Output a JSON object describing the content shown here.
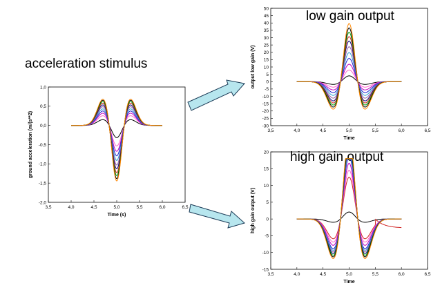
{
  "labels": {
    "accel_title": "acceleration stimulus",
    "low_title": "low gain output",
    "high_title": "high gain output"
  },
  "colors": [
    "#000000",
    "#1f1fd0",
    "#d02020",
    "#00a000",
    "#c000c0",
    "#ff66cc",
    "#2a9fd6",
    "#9a60a0",
    "#606000",
    "#0a0a80",
    "#800000",
    "#ff8800"
  ],
  "chart_data": [
    {
      "type": "line",
      "ylabel": "ground acceleration (m/(s**2)",
      "xlabel": "Time (s)",
      "xlim": [
        3.5,
        6.5
      ],
      "ylim": [
        -2.0,
        1.0
      ],
      "xticks": [
        "3,5",
        "4,0",
        "4,5",
        "5,0",
        "5,5",
        "6,0",
        "6,5"
      ],
      "yticks": [
        "1,0",
        "0,5",
        "0,0",
        "-0,5",
        "-1,0",
        "-1,5",
        "-2,0"
      ],
      "shape": "pulse",
      "series_amplitudes": [
        0.16,
        0.27,
        0.34,
        0.4,
        0.46,
        0.52,
        0.57,
        0.62,
        0.66,
        0.7,
        0.73
      ],
      "series_colors": [
        "#000000",
        "#ff66cc",
        "#c000c0",
        "#1f1fd0",
        "#2a9fd6",
        "#9a60a0",
        "#0a0a80",
        "#d02020",
        "#00a000",
        "#000000",
        "#ff8800"
      ]
    },
    {
      "type": "line",
      "ylabel": "output low gain (V)",
      "xlabel": "Time",
      "xlim": [
        3.5,
        6.5
      ],
      "ylim": [
        -30,
        50
      ],
      "xticks": [
        "3,5",
        "4,0",
        "4,5",
        "5,0",
        "5,5",
        "6,0",
        "6,5"
      ],
      "yticks": [
        "50",
        "45",
        "40",
        "35",
        "30",
        "25",
        "20",
        "15",
        "10",
        "5",
        "0",
        "-5",
        "-10",
        "-15",
        "-20",
        "-25",
        "-30"
      ],
      "shape": "inverted",
      "series_amplitudes": [
        2,
        4,
        6,
        8,
        10,
        12,
        14,
        15.5,
        17,
        18.5,
        20
      ],
      "series_colors": [
        "#000000",
        "#ff66cc",
        "#c000c0",
        "#1f1fd0",
        "#2a9fd6",
        "#9a60a0",
        "#0a0a80",
        "#d02020",
        "#00a000",
        "#000000",
        "#ff8800"
      ]
    },
    {
      "type": "line",
      "ylabel": "high gain output (V)",
      "xlabel": "Time",
      "xlim": [
        3.5,
        6.5
      ],
      "ylim": [
        -15,
        20
      ],
      "xticks": [
        "3,5",
        "4,0",
        "4,5",
        "5,0",
        "5,5",
        "6,0",
        "6,5"
      ],
      "yticks": [
        "20",
        "15",
        "10",
        "5",
        "0",
        "-5",
        "-10",
        "-15"
      ],
      "shape": "saturated",
      "series_amplitudes": [
        1,
        6,
        7,
        8,
        9,
        9.5,
        10,
        10.5,
        11,
        11.5,
        12
      ],
      "series_colors": [
        "#000000",
        "#d02020",
        "#ff66cc",
        "#c000c0",
        "#1f1fd0",
        "#2a9fd6",
        "#9a60a0",
        "#0a0a80",
        "#00a000",
        "#000000",
        "#ff8800"
      ]
    }
  ]
}
